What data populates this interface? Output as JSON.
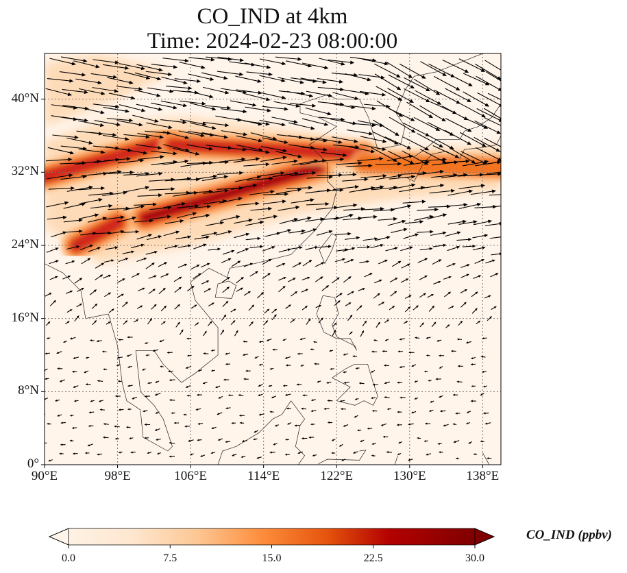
{
  "title": {
    "line1": "CO_IND at 4km",
    "line2": "Time: 2024-02-23 08:00:00"
  },
  "map": {
    "type": "contourf-with-wind-vectors",
    "lon_range": [
      90,
      140
    ],
    "lat_range": [
      0,
      45
    ],
    "grid": true,
    "lon_ticks": [
      "90°E",
      "98°E",
      "106°E",
      "114°E",
      "122°E",
      "130°E",
      "138°E"
    ],
    "lat_ticks": [
      "0°",
      "8°N",
      "16°N",
      "24°N",
      "32°N",
      "40°N"
    ],
    "plume_peak_color": "#7f0000"
  },
  "colorbar": {
    "label": "CO_IND (ppbv)",
    "min": 0.0,
    "max": 30.0,
    "ticks": [
      "0.0",
      "7.5",
      "15.0",
      "22.5",
      "30.0"
    ],
    "colors": [
      "#fff5eb",
      "#fee6ce",
      "#fdd0a2",
      "#fdae6b",
      "#fd8d3c",
      "#f16913",
      "#d94801",
      "#a63603",
      "#7f2704"
    ],
    "extend": "both"
  },
  "chart_data": {
    "type": "heatmap",
    "title": "CO_IND at 4km",
    "subtitle": "Time: 2024-02-23 08:00:00",
    "xlabel": "",
    "ylabel": "",
    "xlim": [
      90,
      140
    ],
    "ylim": [
      0,
      45
    ],
    "colorbar_range": [
      0.0,
      30.0
    ],
    "plumes": [
      {
        "lon_start": 93.5,
        "lat_start": 24.0,
        "lon_end": 98,
        "lat_end": 26.5,
        "value": 28
      },
      {
        "lon_start": 101,
        "lat_start": 27.0,
        "lon_end": 120,
        "lat_end": 32.5,
        "value": 30
      },
      {
        "lon_start": 90,
        "lat_start": 31.5,
        "lon_end": 104,
        "lat_end": 35.5,
        "value": 24
      },
      {
        "lon_start": 104,
        "lat_start": 35.0,
        "lon_end": 125,
        "lat_end": 34.0,
        "value": 20
      },
      {
        "lon_start": 125,
        "lat_start": 33.0,
        "lon_end": 140,
        "lat_end": 32.5,
        "value": 18
      }
    ]
  }
}
